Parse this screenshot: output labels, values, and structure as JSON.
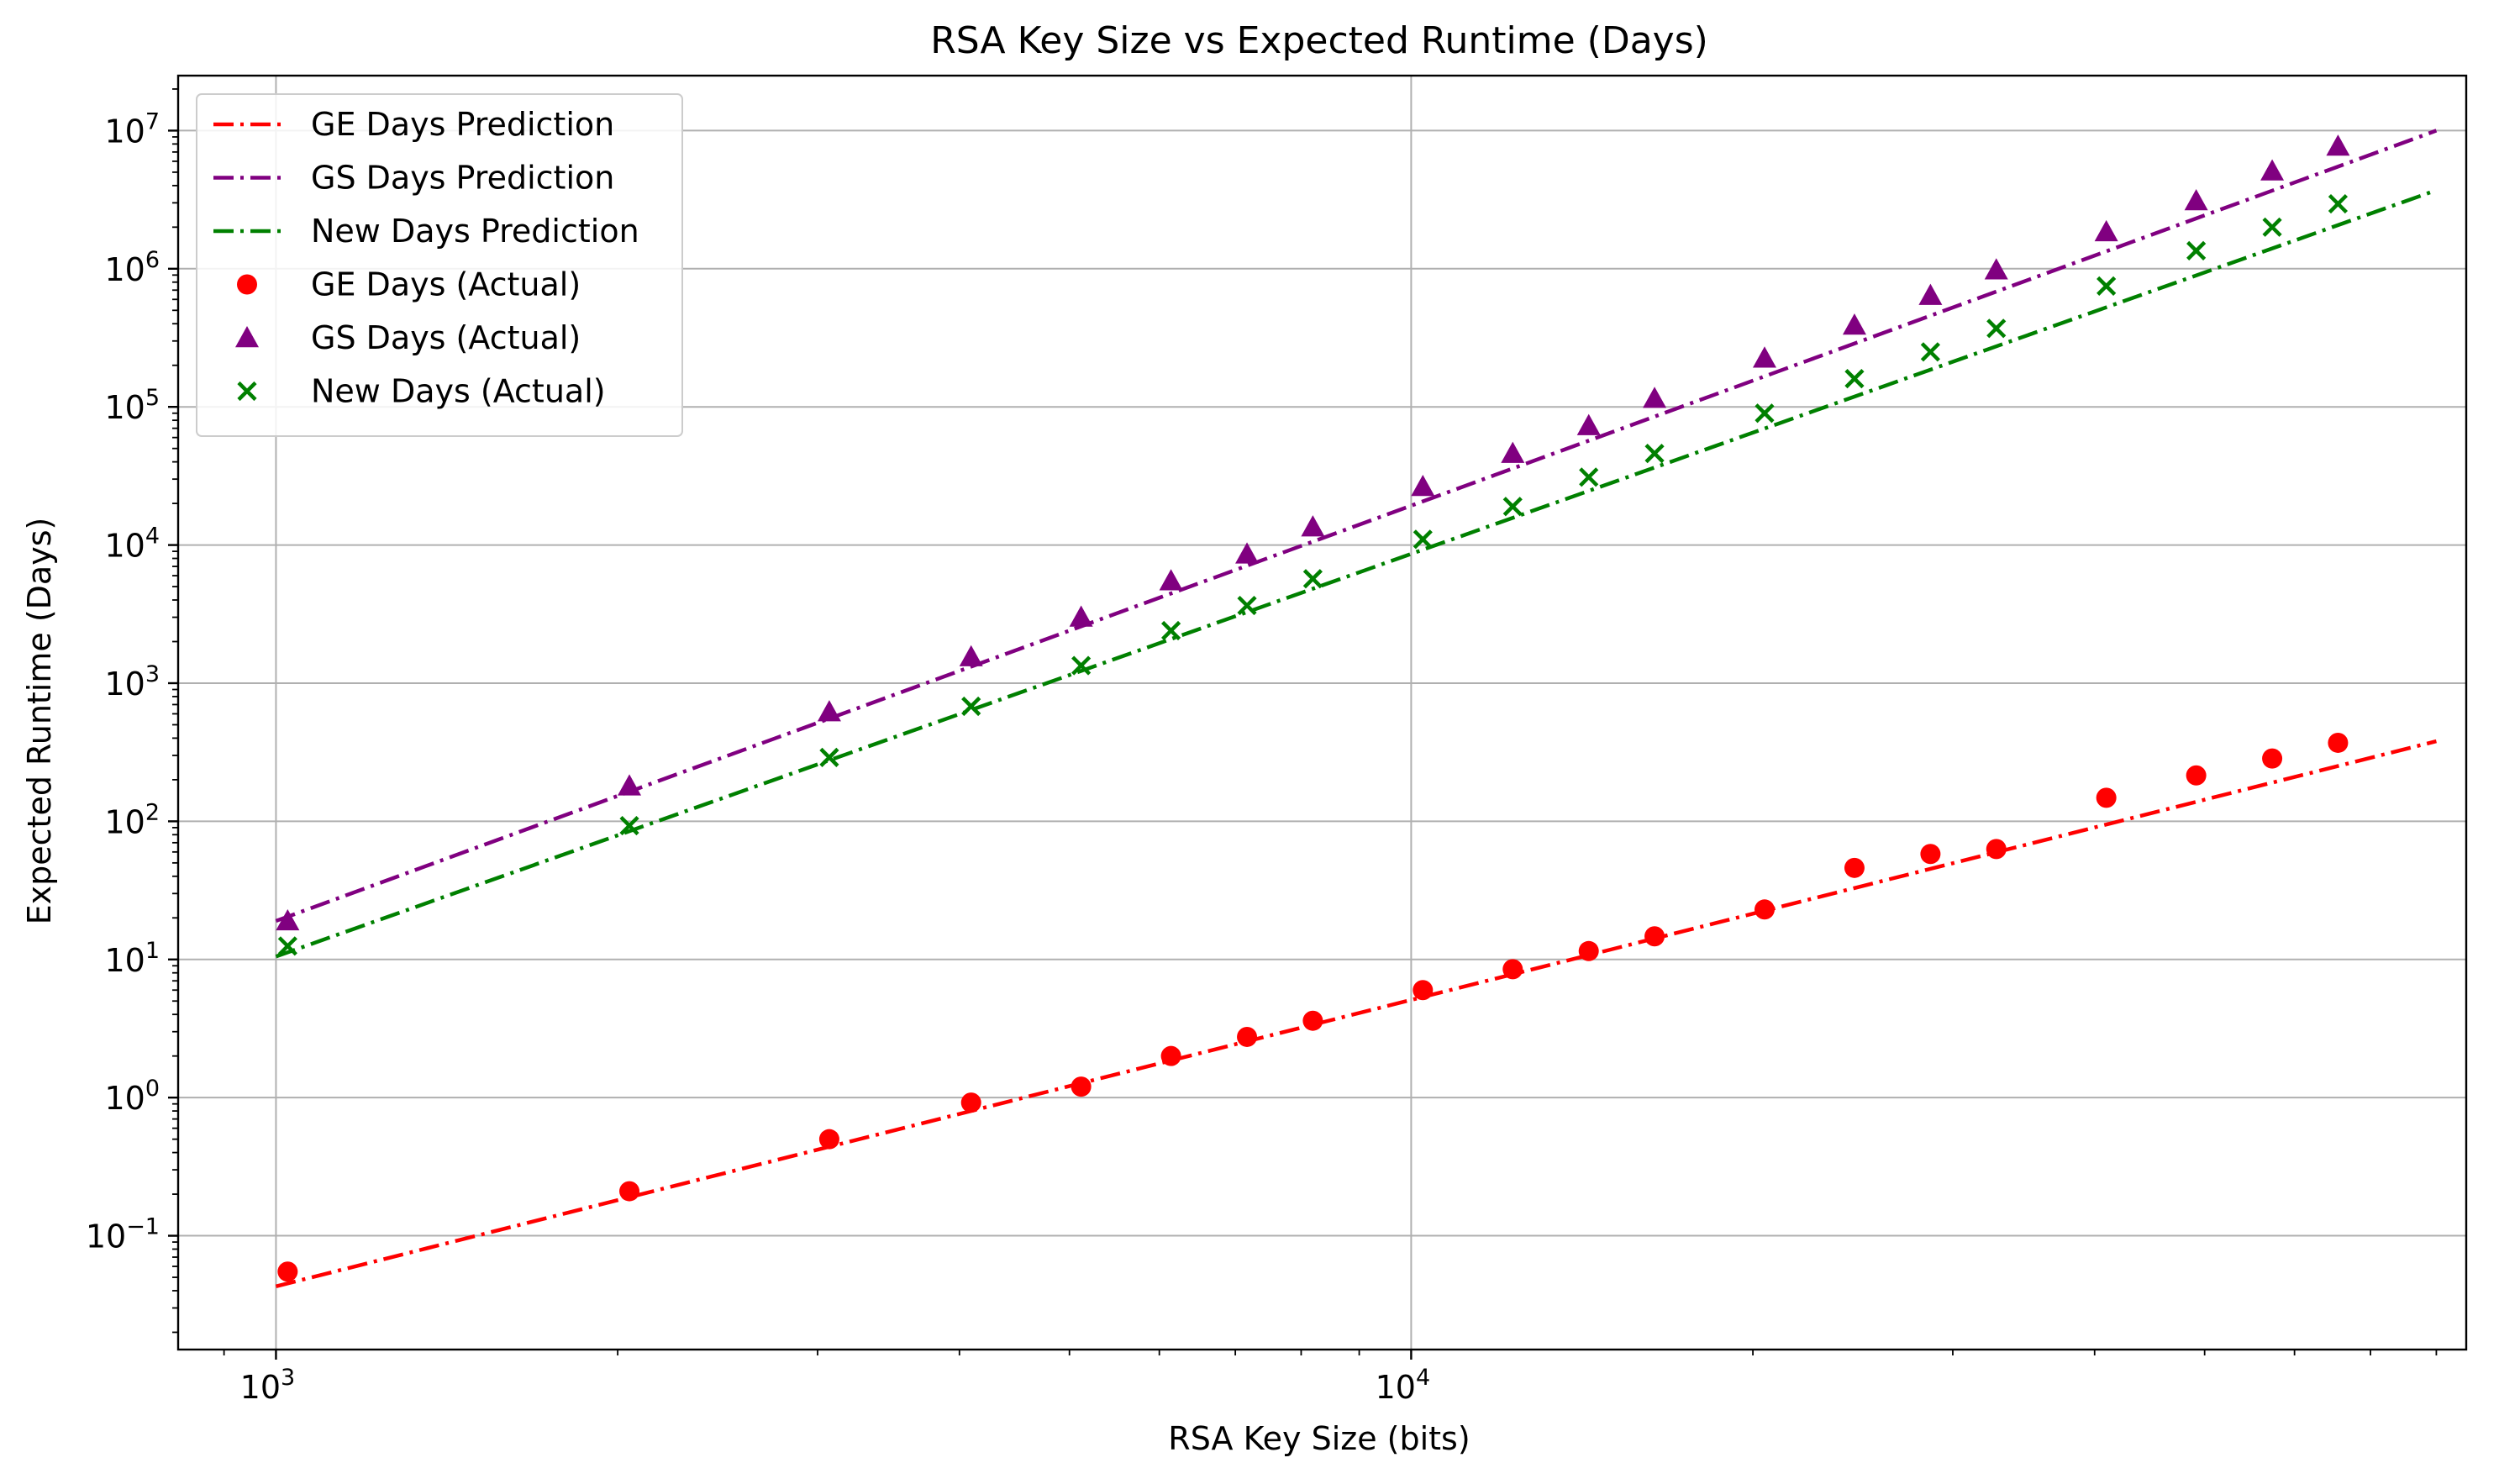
{
  "chart_data": {
    "type": "scatter",
    "title": "RSA Key Size vs Expected Runtime (Days)",
    "xlabel": "RSA Key Size (bits)",
    "ylabel": "Expected Runtime (Days)",
    "xscale": "log",
    "yscale": "log",
    "xlim": [
      820,
      85000
    ],
    "ylim": [
      0.015,
      25000000
    ],
    "grid": true,
    "legend_position": "top-left",
    "x_ticks": [
      {
        "value": 1000,
        "base": "10",
        "exp": "3"
      },
      {
        "value": 10000,
        "base": "10",
        "exp": "4"
      }
    ],
    "y_ticks": [
      {
        "value": 0.1,
        "base": "10",
        "exp": "−1"
      },
      {
        "value": 1,
        "base": "10",
        "exp": "0"
      },
      {
        "value": 10,
        "base": "10",
        "exp": "1"
      },
      {
        "value": 100,
        "base": "10",
        "exp": "2"
      },
      {
        "value": 1000,
        "base": "10",
        "exp": "3"
      },
      {
        "value": 10000,
        "base": "10",
        "exp": "4"
      },
      {
        "value": 100000,
        "base": "10",
        "exp": "5"
      },
      {
        "value": 1000000,
        "base": "10",
        "exp": "6"
      },
      {
        "value": 10000000,
        "base": "10",
        "exp": "7"
      }
    ],
    "x": [
      1024,
      2048,
      3072,
      4096,
      5120,
      6144,
      7168,
      8192,
      10240,
      12288,
      14336,
      16384,
      20480,
      24576,
      28672,
      32768,
      40960,
      49152,
      57344,
      65536
    ],
    "series": [
      {
        "name": "GE Days Prediction",
        "kind": "line",
        "style": "dashdot",
        "color": "#ff0000",
        "x": [
          1000,
          80000
        ],
        "values": [
          0.043,
          380
        ]
      },
      {
        "name": "GS Days Prediction",
        "kind": "line",
        "style": "dashdot",
        "color": "#800080",
        "x": [
          1000,
          80000
        ],
        "values": [
          19,
          10000000
        ]
      },
      {
        "name": "New Days Prediction",
        "kind": "line",
        "style": "dashdot",
        "color": "#008000",
        "x": [
          1000,
          80000
        ],
        "values": [
          10.5,
          3700000
        ]
      },
      {
        "name": "GE Days (Actual)",
        "kind": "scatter",
        "marker": "circle",
        "color": "#ff0000",
        "values": [
          0.055,
          0.21,
          0.5,
          0.92,
          1.2,
          2.0,
          2.75,
          3.6,
          6.0,
          8.5,
          11.5,
          14.7,
          23,
          46,
          58,
          63,
          148,
          215,
          285,
          370
        ]
      },
      {
        "name": "GS Days (Actual)",
        "kind": "scatter",
        "marker": "triangle",
        "color": "#800080",
        "values": [
          19,
          180,
          620,
          1550,
          3000,
          5500,
          8600,
          13500,
          26500,
          46000,
          73000,
          115000,
          225000,
          390000,
          640000,
          980000,
          1850000,
          3100000,
          5100000,
          7700000
        ]
      },
      {
        "name": "New Days (Actual)",
        "kind": "scatter",
        "marker": "x",
        "color": "#008000",
        "values": [
          12.5,
          93,
          290,
          680,
          1340,
          2400,
          3650,
          5700,
          11000,
          19000,
          31000,
          46000,
          90000,
          160000,
          250000,
          370000,
          750000,
          1350000,
          2000000,
          2950000
        ]
      }
    ]
  }
}
